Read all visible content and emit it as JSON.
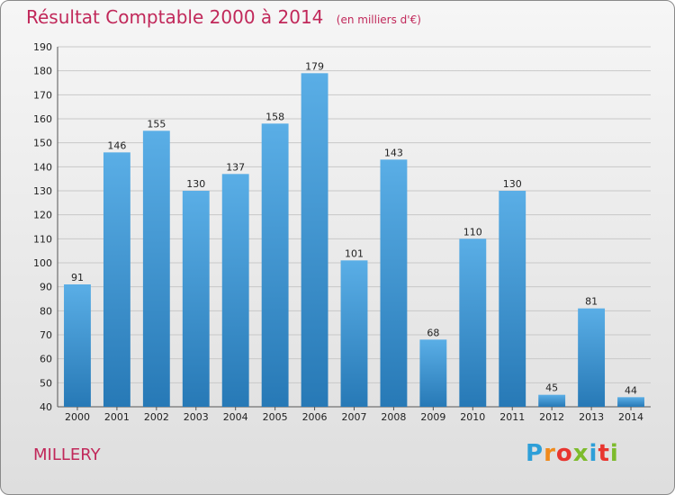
{
  "title": "Résultat Comptable 2000 à 2014",
  "subtitle": "(en milliers d'€)",
  "place_name": "MILLERY",
  "brand": "Proxiti",
  "colors": {
    "title": "#c1285a",
    "bar_top": "#5aaee6",
    "bar_bottom": "#2779b6",
    "gridline": "#c8c8c8",
    "axis_text": "#222222"
  },
  "chart_data": {
    "type": "bar",
    "categories": [
      "2000",
      "2001",
      "2002",
      "2003",
      "2004",
      "2005",
      "2006",
      "2007",
      "2008",
      "2009",
      "2010",
      "2011",
      "2012",
      "2013",
      "2014"
    ],
    "values": [
      91,
      146,
      155,
      130,
      137,
      158,
      179,
      101,
      143,
      68,
      110,
      130,
      45,
      81,
      44
    ],
    "ylim": [
      40,
      190
    ],
    "yticks": [
      40,
      50,
      60,
      70,
      80,
      90,
      100,
      110,
      120,
      130,
      140,
      150,
      160,
      170,
      180,
      190
    ],
    "grid": true,
    "xlabel": "",
    "ylabel": ""
  }
}
